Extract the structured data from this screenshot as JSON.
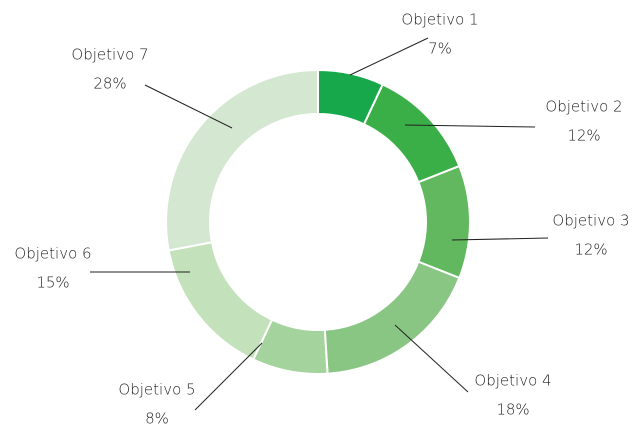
{
  "chart_data": {
    "type": "donut",
    "categories": [
      "Objetivo 1",
      "Objetivo 2",
      "Objetivo 3",
      "Objetivo 4",
      "Objetivo 5",
      "Objetivo 6",
      "Objetivo 7"
    ],
    "values": [
      7,
      12,
      12,
      18,
      8,
      15,
      28
    ],
    "value_labels": [
      "7%",
      "12%",
      "12%",
      "18%",
      "8%",
      "15%",
      "28%"
    ],
    "colors": [
      "#16a84a",
      "#3aae47",
      "#62b85e",
      "#8ac683",
      "#a5d39d",
      "#c3e1bb",
      "#d4e8d1"
    ]
  }
}
